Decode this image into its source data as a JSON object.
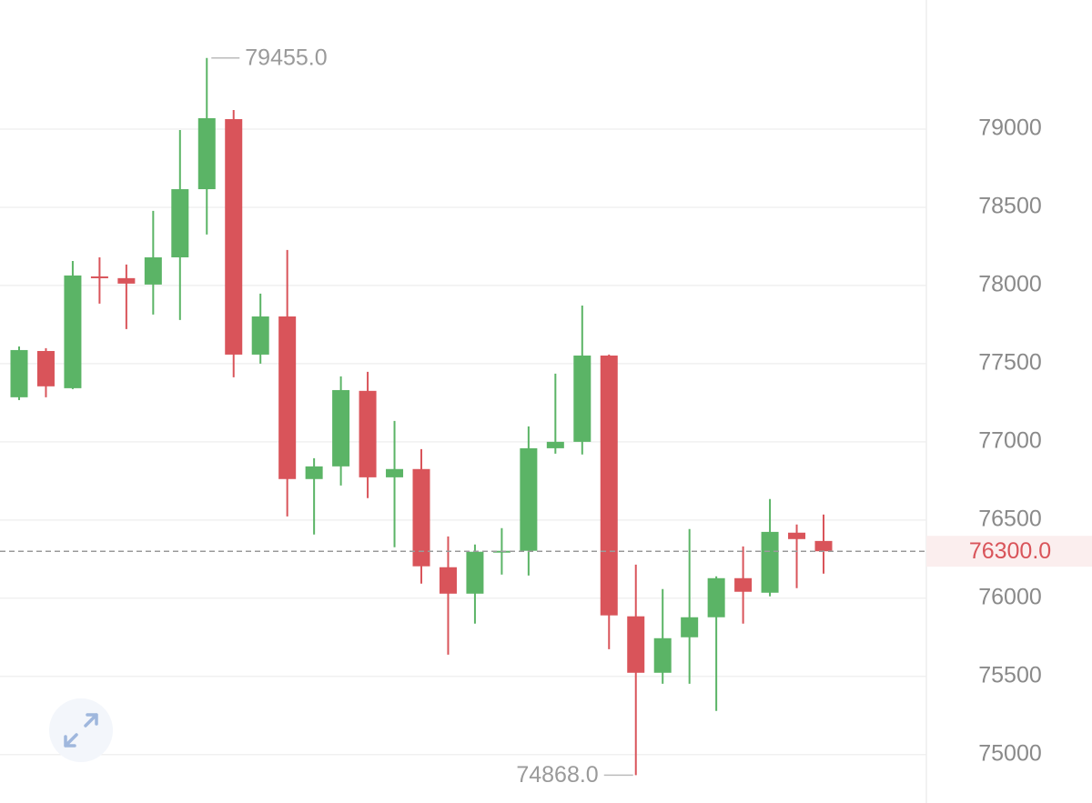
{
  "chart_data": {
    "type": "candlestick",
    "open": [
      77285,
      77581,
      77343,
      78058,
      78047,
      78006,
      78180,
      78616,
      79064,
      77558,
      77802,
      76762,
      76843,
      77326,
      76773,
      76826,
      76198,
      76029,
      76297,
      76303,
      76959,
      77000,
      77552,
      75884,
      75523,
      75750,
      75878,
      76128,
      76035,
      76419,
      76366
    ],
    "high": [
      77610,
      77599,
      78157,
      78180,
      78134,
      78477,
      78994,
      79455,
      79122,
      77948,
      78227,
      76895,
      77419,
      77448,
      77134,
      76953,
      76395,
      76343,
      76448,
      77099,
      77436,
      77872,
      77558,
      76215,
      76058,
      76442,
      76140,
      76331,
      76634,
      76471,
      76535
    ],
    "low": [
      77267,
      77285,
      77337,
      77884,
      77721,
      77814,
      77779,
      78326,
      77413,
      77500,
      76523,
      76407,
      76721,
      76640,
      76326,
      76093,
      75639,
      75837,
      76151,
      76145,
      76924,
      76919,
      75674,
      74868,
      75453,
      75453,
      75279,
      75837,
      76012,
      76064,
      76157
    ],
    "close": [
      77587,
      77355,
      78064,
      78050,
      78012,
      78180,
      78616,
      79070,
      77558,
      77802,
      76762,
      76843,
      77331,
      76773,
      76826,
      76204,
      76029,
      76297,
      76303,
      76959,
      77000,
      77552,
      75890,
      75523,
      75744,
      75878,
      76128,
      76041,
      76424,
      76378,
      76300
    ],
    "up_color": "#5bb466",
    "down_color": "#d9545a",
    "ylim": [
      74690,
      79826
    ],
    "yticks": [
      75000,
      75500,
      76000,
      76500,
      77000,
      77500,
      78000,
      78500,
      79000
    ],
    "grid": true,
    "max_label": {
      "value": 79455,
      "label": "79455.0"
    },
    "min_label": {
      "value": 74868,
      "label": "74868.0"
    },
    "last_price": {
      "value": 76300,
      "label": "76300.0"
    }
  }
}
